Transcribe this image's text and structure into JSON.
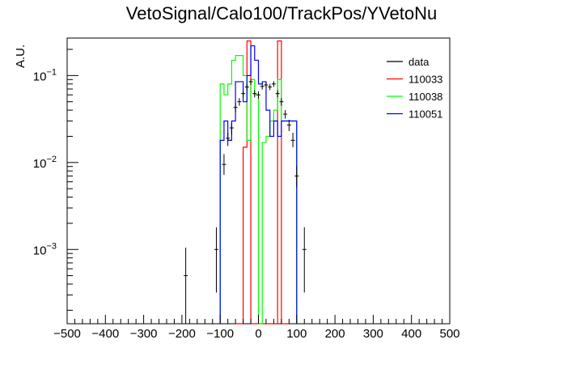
{
  "chart_data": {
    "type": "histogram",
    "title": "VetoSignal/Calo100/TrackPos/YVetoNu",
    "xlabel": "",
    "ylabel": "A.U.",
    "xlim": [
      -500,
      500
    ],
    "ylim": [
      0.00014,
      0.27
    ],
    "yscale": "log",
    "grid": false,
    "legend_position": "top-right",
    "x_ticks": [
      -500,
      -400,
      -300,
      -200,
      -100,
      0,
      100,
      200,
      300,
      400,
      500
    ],
    "x_tick_labels": [
      "−500",
      "−400",
      "−300",
      "−200",
      "−100",
      "0",
      "100",
      "200",
      "300",
      "400",
      "500"
    ],
    "y_ticks": [
      0.001,
      0.01,
      0.1
    ],
    "y_tick_labels": [
      {
        "base": "10",
        "exp": "−3"
      },
      {
        "base": "10",
        "exp": "−2"
      },
      {
        "base": "10",
        "exp": "−1"
      }
    ],
    "data": {
      "name": "data",
      "color": "#000000",
      "points": [
        {
          "x": -190,
          "y": 0.0005,
          "lo": 0.00014,
          "hi": 0.00105
        },
        {
          "x": -110,
          "y": 0.001,
          "lo": 0.00032,
          "hi": 0.0018
        },
        {
          "x": -90,
          "y": 0.0095,
          "lo": 0.0072,
          "hi": 0.0125
        },
        {
          "x": -80,
          "y": 0.019,
          "lo": 0.0155,
          "hi": 0.022
        },
        {
          "x": -70,
          "y": 0.025,
          "lo": 0.021,
          "hi": 0.028
        },
        {
          "x": -60,
          "y": 0.043,
          "lo": 0.038,
          "hi": 0.048
        },
        {
          "x": -50,
          "y": 0.05,
          "lo": 0.045,
          "hi": 0.055
        },
        {
          "x": -40,
          "y": 0.062,
          "lo": 0.056,
          "hi": 0.068
        },
        {
          "x": -30,
          "y": 0.074,
          "lo": 0.068,
          "hi": 0.08
        },
        {
          "x": -20,
          "y": 0.085,
          "lo": 0.078,
          "hi": 0.092
        },
        {
          "x": -10,
          "y": 0.062,
          "lo": 0.056,
          "hi": 0.068
        },
        {
          "x": 0,
          "y": 0.06,
          "lo": 0.054,
          "hi": 0.066
        },
        {
          "x": 10,
          "y": 0.075,
          "lo": 0.069,
          "hi": 0.081
        },
        {
          "x": 20,
          "y": 0.078,
          "lo": 0.072,
          "hi": 0.084
        },
        {
          "x": 30,
          "y": 0.074,
          "lo": 0.068,
          "hi": 0.08
        },
        {
          "x": 40,
          "y": 0.08,
          "lo": 0.074,
          "hi": 0.086
        },
        {
          "x": 50,
          "y": 0.062,
          "lo": 0.056,
          "hi": 0.068
        },
        {
          "x": 60,
          "y": 0.05,
          "lo": 0.045,
          "hi": 0.055
        },
        {
          "x": 70,
          "y": 0.036,
          "lo": 0.032,
          "hi": 0.04
        },
        {
          "x": 80,
          "y": 0.027,
          "lo": 0.023,
          "hi": 0.031
        },
        {
          "x": 90,
          "y": 0.018,
          "lo": 0.015,
          "hi": 0.022
        },
        {
          "x": 100,
          "y": 0.007,
          "lo": 0.0052,
          "hi": 0.0092
        },
        {
          "x": 120,
          "y": 0.001,
          "lo": 0.00032,
          "hi": 0.0018
        }
      ]
    },
    "series": [
      {
        "name": "110033",
        "color": "#ff0000",
        "edges": [
          -60,
          -40,
          -30,
          -20,
          40,
          50,
          60,
          80
        ],
        "values": [
          0,
          0.015,
          0.25,
          0,
          0,
          0.25,
          0
        ]
      },
      {
        "name": "110038",
        "color": "#00ff00",
        "edges": [
          -100,
          -90,
          -80,
          -70,
          -60,
          -50,
          -40,
          -30,
          -20,
          -10,
          0,
          10,
          20,
          30,
          40,
          50,
          60,
          70,
          80,
          90,
          100
        ],
        "values": [
          0.08,
          0.06,
          0.08,
          0.15,
          0.17,
          0.17,
          0.1,
          0.018,
          0.09,
          0.06,
          0,
          0.017,
          0.02,
          0.03,
          0.04,
          0.09,
          0.03,
          0.03,
          0.03,
          0.03
        ]
      },
      {
        "name": "110051",
        "color": "#0000ff",
        "edges": [
          -100,
          -90,
          -80,
          -70,
          -60,
          -50,
          -40,
          -30,
          -20,
          -10,
          0,
          10,
          20,
          30,
          40,
          50,
          60,
          70,
          80,
          90,
          100
        ],
        "values": [
          0.018,
          0.03,
          0.018,
          0.03,
          0.085,
          0.085,
          0.05,
          0.1,
          0.22,
          0.15,
          0.08,
          0.085,
          0.04,
          0.02,
          0.03,
          0.02,
          0.03,
          0.03,
          0.03,
          0.03
        ]
      }
    ]
  }
}
